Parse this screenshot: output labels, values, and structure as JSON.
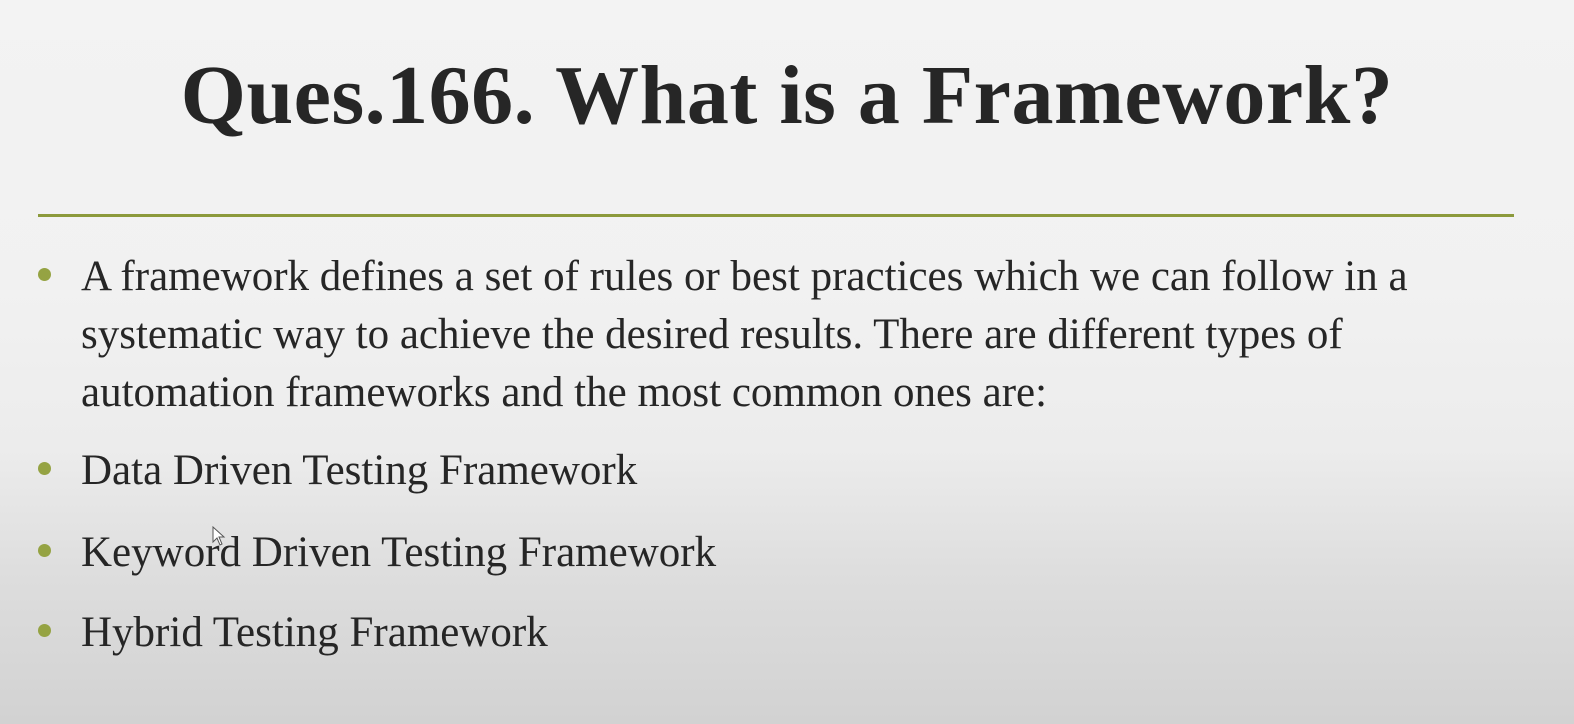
{
  "slide": {
    "title": "Ques.166. What is a Framework?",
    "colors": {
      "accent_rule": "#8c9a3c",
      "bullet_dot": "#95a343",
      "text": "#262626"
    },
    "bullets": [
      {
        "lines": [
          "A framework defines a set of rules or best practices which we can follow in a",
          "systematic way to achieve the desired results. There are different types of",
          "automation frameworks and the most common ones are:"
        ]
      },
      {
        "text": "Data Driven Testing Framework"
      },
      {
        "text": "Keyword Driven Testing Framework"
      },
      {
        "text": "Hybrid Testing Framework"
      }
    ]
  },
  "cursor": {
    "icon": "mouse-pointer-icon"
  }
}
